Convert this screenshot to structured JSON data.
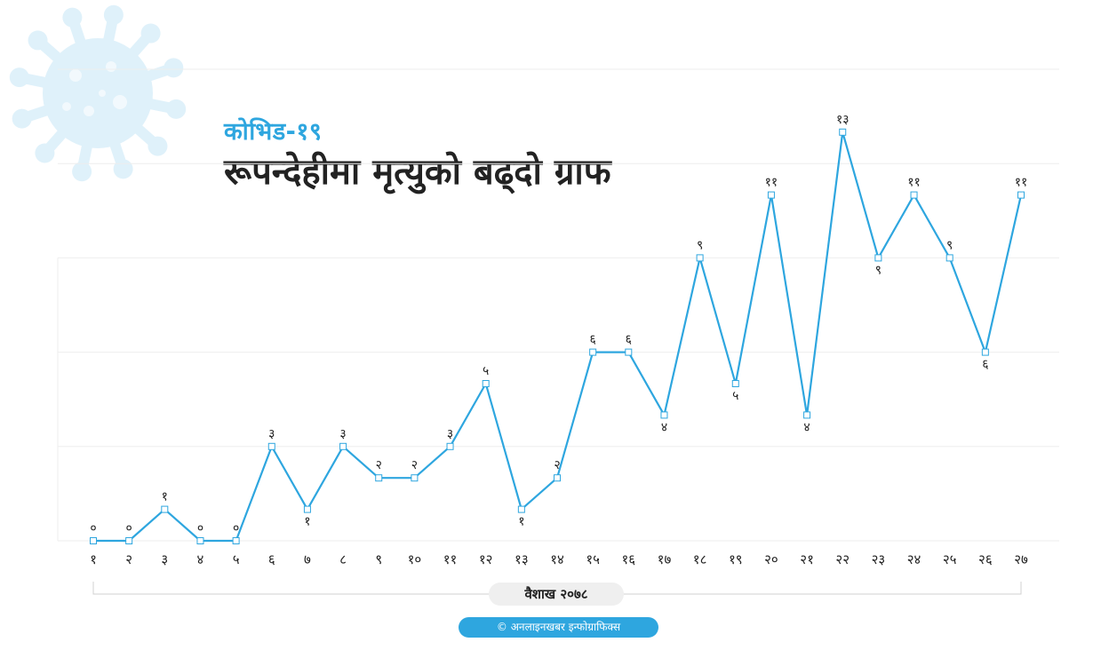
{
  "header": {
    "subtitle": "कोभिड-१९",
    "title": "रूपन्देहीमा मृत्युको बढ्दो ग्राफ"
  },
  "footer": {
    "x_caption": "वैशाख २०७८",
    "credit": "© अनलाइनखबर इन्फोग्राफिक्स"
  },
  "colors": {
    "line": "#2ea6df",
    "grid": "#eeeeee",
    "text": "#222222",
    "virus": "#dff1fa"
  },
  "decoration": {
    "background_icon": "coronavirus-icon"
  },
  "chart_data": {
    "type": "line",
    "categories": [
      "१",
      "२",
      "३",
      "४",
      "५",
      "६",
      "७",
      "८",
      "९",
      "१०",
      "११",
      "१२",
      "१३",
      "१४",
      "१५",
      "१६",
      "१७",
      "१८",
      "१९",
      "२०",
      "२१",
      "२२",
      "२३",
      "२४",
      "२५",
      "२६",
      "२७"
    ],
    "values": [
      0,
      0,
      1,
      0,
      0,
      3,
      1,
      3,
      2,
      2,
      3,
      5,
      1,
      2,
      6,
      6,
      4,
      9,
      5,
      11,
      4,
      13,
      9,
      11,
      9,
      6,
      11
    ],
    "data_labels": [
      "०",
      "०",
      "१",
      "०",
      "०",
      "३",
      "१",
      "३",
      "२",
      "२",
      "३",
      "५",
      "१",
      "२",
      "६",
      "६",
      "४",
      "९",
      "५",
      "११",
      "४",
      "१३",
      "९",
      "११",
      "९",
      "६",
      "११"
    ],
    "ylim": [
      0,
      15
    ],
    "grid": true,
    "y_tick_labels_shown": false,
    "markers": "hollow-square"
  }
}
